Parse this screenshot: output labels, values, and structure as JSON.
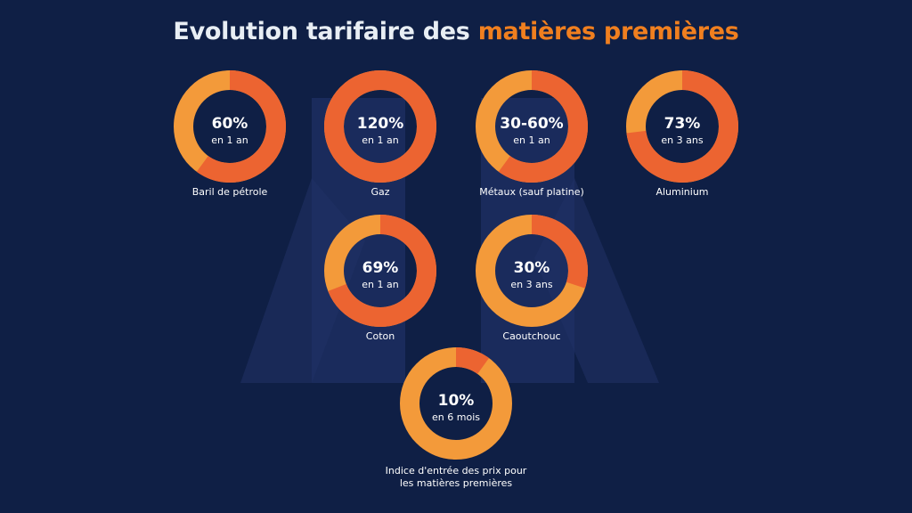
{
  "title": {
    "prefix": "Evolution tarifaire des ",
    "highlight": "matières premières"
  },
  "colors": {
    "background": "#0f1f45",
    "ring_light": "#f39a3a",
    "ring_dark": "#ec6431",
    "text": "#ffffff",
    "title_accent": "#f07f1f",
    "watermark": "#1f3064"
  },
  "chart_data": {
    "type": "donut",
    "unit": "%",
    "items": [
      {
        "value_label": "60%",
        "value": 60,
        "period": "en 1 an",
        "label": "Baril de pétrole"
      },
      {
        "value_label": "120%",
        "value": 120,
        "period": "en 1 an",
        "label": "Gaz"
      },
      {
        "value_label": "30-60%",
        "value": [
          30,
          60
        ],
        "period": "en 1 an",
        "label": "Métaux (sauf platine)"
      },
      {
        "value_label": "73%",
        "value": 73,
        "period": "en 3 ans",
        "label": "Aluminium"
      },
      {
        "value_label": "69%",
        "value": 69,
        "period": "en 1 an",
        "label": "Coton"
      },
      {
        "value_label": "30%",
        "value": 30,
        "period": "en 3 ans",
        "label": "Caoutchouc"
      },
      {
        "value_label": "10%",
        "value": 10,
        "period": "en 6 mois",
        "label": "Indice d'entrée des prix pour les matières premières"
      }
    ]
  }
}
